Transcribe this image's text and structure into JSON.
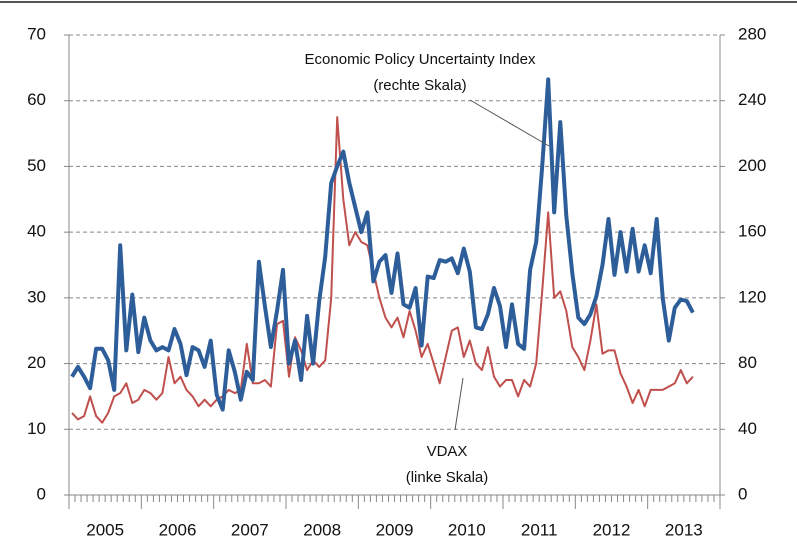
{
  "chart_data": {
    "type": "line",
    "categories": [
      null,
      null,
      null,
      null,
      null,
      null,
      "2005",
      null,
      null,
      null,
      null,
      null,
      null,
      null,
      null,
      null,
      null,
      null,
      "2006",
      null,
      null,
      null,
      null,
      null,
      null,
      null,
      null,
      null,
      null,
      null,
      "2007",
      null,
      null,
      null,
      null,
      null,
      null,
      null,
      null,
      null,
      null,
      null,
      "2008",
      null,
      null,
      null,
      null,
      null,
      null,
      null,
      null,
      null,
      null,
      null,
      "2009",
      null,
      null,
      null,
      null,
      null,
      null,
      null,
      null,
      null,
      null,
      null,
      "2010",
      null,
      null,
      null,
      null,
      null,
      null,
      null,
      null,
      null,
      null,
      null,
      "2011",
      null,
      null,
      null,
      null,
      null,
      null,
      null,
      null,
      null,
      null,
      null,
      "2012",
      null,
      null,
      null,
      null,
      null,
      null,
      null,
      null,
      null,
      null,
      null,
      "2013",
      null,
      null,
      null,
      null,
      null
    ],
    "series": [
      {
        "name": "VDAX",
        "color": "#c0504d",
        "axis": "y",
        "values": [
          12.5,
          11.5,
          12,
          15,
          12,
          11,
          12.5,
          15,
          15.5,
          17,
          14,
          14.5,
          16,
          15.5,
          14.5,
          15.5,
          21,
          17,
          18,
          16,
          15,
          13.5,
          14.5,
          13.5,
          14.5,
          15,
          16,
          15.5,
          16,
          23,
          17,
          17,
          17.5,
          16.5,
          26,
          26.5,
          18,
          24,
          22,
          19,
          20.5,
          19.5,
          20.5,
          30,
          57.5,
          45,
          38,
          40,
          38.5,
          38,
          34,
          30,
          27,
          25.5,
          27,
          24,
          28,
          25,
          21,
          23,
          20,
          17,
          21,
          25,
          25.5,
          21,
          23.5,
          20,
          19,
          22.5,
          18,
          16.5,
          17.5,
          17.5,
          15,
          17.5,
          16.5,
          20,
          31,
          43,
          30,
          31,
          28,
          22.5,
          21,
          19,
          23.5,
          29,
          21.5,
          22,
          22,
          18.5,
          16.5,
          14,
          16,
          13.5,
          16,
          16,
          16,
          16.5,
          17,
          19,
          17,
          18,
          null,
          null,
          null,
          null
        ]
      },
      {
        "name": "Economic Policy Uncertainty Index",
        "color": "#2e5e9a",
        "axis": "y2",
        "values": [
          72,
          78,
          72,
          65,
          89,
          89,
          82,
          64,
          152,
          88,
          122,
          87,
          108,
          94,
          88,
          90,
          88,
          101,
          92,
          73,
          90,
          88,
          78,
          94,
          61,
          52,
          88,
          75,
          58,
          75,
          70,
          142,
          115,
          90,
          112,
          137,
          80,
          94,
          70,
          109,
          80,
          118,
          145,
          190,
          200,
          209,
          190,
          175,
          160,
          172,
          130,
          142,
          146,
          123,
          147,
          116,
          114,
          126,
          91,
          133,
          132,
          143,
          142,
          144,
          135,
          150,
          136,
          102,
          101,
          110,
          126,
          115,
          90,
          116,
          92,
          89,
          137,
          154,
          200,
          253,
          172,
          227,
          170,
          135,
          108,
          104,
          110,
          121,
          140,
          168,
          134,
          160,
          136,
          162,
          136,
          152,
          135,
          168,
          120,
          94,
          114,
          119,
          118,
          111,
          null,
          null,
          null,
          null
        ]
      }
    ],
    "ylim": [
      0,
      70
    ],
    "yticks": [
      0,
      10,
      20,
      30,
      40,
      50,
      60,
      70
    ],
    "y2lim": [
      0,
      280
    ],
    "y2ticks": [
      0,
      40,
      80,
      120,
      160,
      200,
      240,
      280
    ],
    "grid": true,
    "annotations": [
      {
        "lines": [
          "Economic Policy Uncertainty Index",
          "(rechte Skala)"
        ]
      },
      {
        "lines": [
          "VDAX",
          "(linke Skala)"
        ]
      }
    ]
  }
}
